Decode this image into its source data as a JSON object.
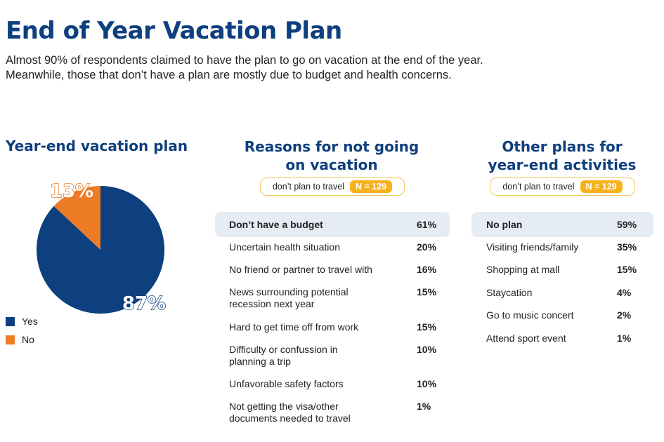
{
  "title": "End of Year Vacation Plan",
  "subtitle": [
    "Almost 90% of respondents claimed to have the plan to go on vacation at the end of the year.",
    "Meanwhile, those that don’t have a plan are mostly due to budget and health concerns."
  ],
  "colors": {
    "yes": "#0e3f7e",
    "no": "#ee7b26",
    "accent": "#f7b21b"
  },
  "chart_data": [
    {
      "type": "pie",
      "title": "Year-end vacation plan",
      "categories": [
        "Yes",
        "No"
      ],
      "values": [
        87,
        13
      ],
      "labels": [
        "87%",
        "13%"
      ],
      "legend": "bottom-left"
    },
    {
      "type": "table",
      "title_lines": [
        "Reasons for not going",
        "on vacation"
      ],
      "pill_text": "don’t plan to travel",
      "pill_n": "N = 129",
      "rows": [
        {
          "label": [
            "Don’t have a budget"
          ],
          "value": "61%"
        },
        {
          "label": [
            "Uncertain health situation"
          ],
          "value": "20%"
        },
        {
          "label": [
            "No friend or partner to travel with"
          ],
          "value": "16%"
        },
        {
          "label": [
            "News surrounding potential",
            "recession next year"
          ],
          "value": "15%"
        },
        {
          "label": [
            "Hard to get time off from work"
          ],
          "value": "15%"
        },
        {
          "label": [
            "Difficulty or confussion in",
            "planning a trip"
          ],
          "value": "10%"
        },
        {
          "label": [
            "Unfavorable safety factors"
          ],
          "value": "10%"
        },
        {
          "label": [
            "Not getting the visa/other",
            "documents needed to travel"
          ],
          "value": "1%"
        }
      ]
    },
    {
      "type": "table",
      "title_lines": [
        "Other plans for",
        "year-end activities"
      ],
      "pill_text": "don’t plan to travel",
      "pill_n": "N = 129",
      "rows": [
        {
          "label": [
            "No plan"
          ],
          "value": "59%"
        },
        {
          "label": [
            "Visiting friends/family"
          ],
          "value": "35%"
        },
        {
          "label": [
            "Shopping at mall"
          ],
          "value": "15%"
        },
        {
          "label": [
            "Staycation"
          ],
          "value": "4%"
        },
        {
          "label": [
            "Go to music concert"
          ],
          "value": "2%"
        },
        {
          "label": [
            "Attend sport event"
          ],
          "value": "1%"
        }
      ]
    }
  ]
}
